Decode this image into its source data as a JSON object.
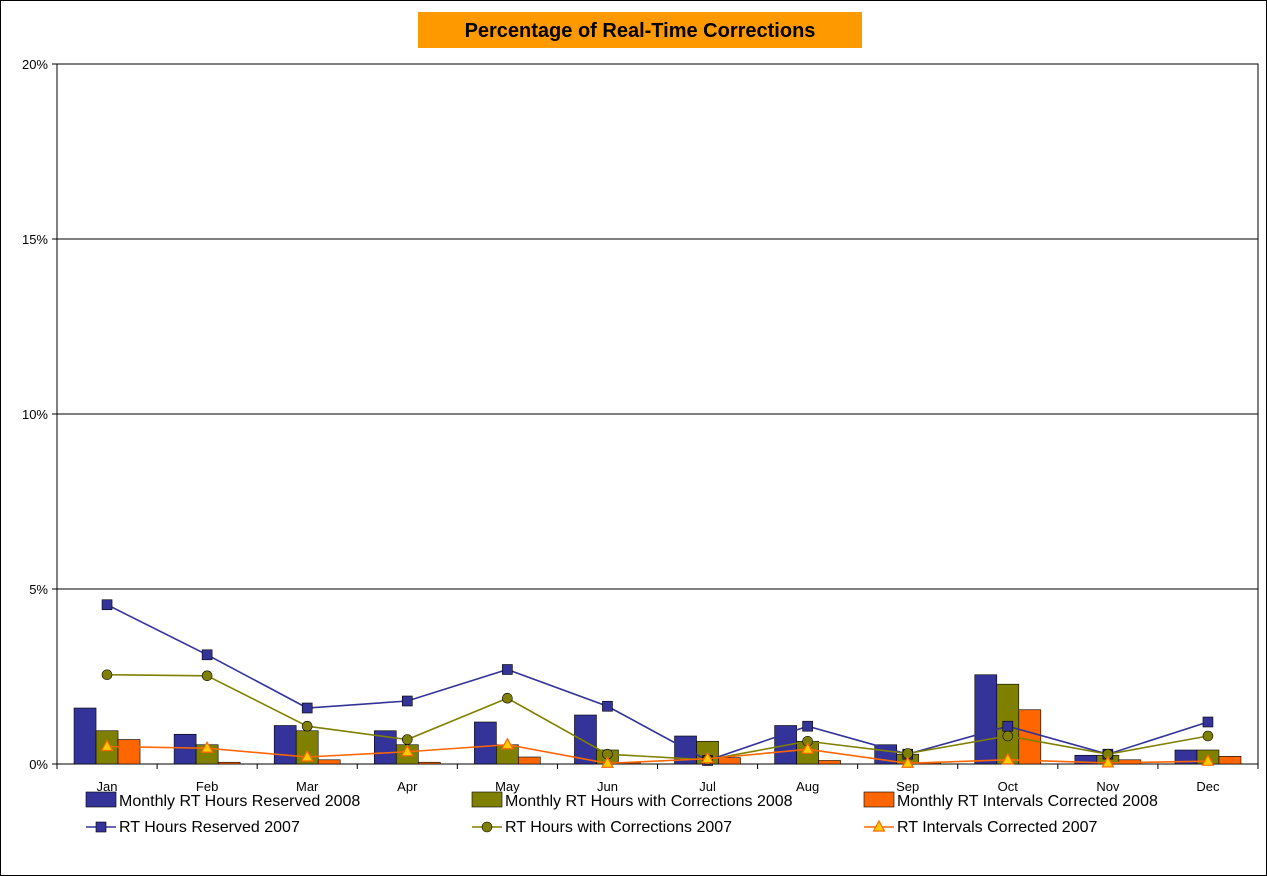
{
  "chart_data": {
    "type": "bar",
    "title": "Percentage of Real-Time Corrections",
    "xlabel": "",
    "ylabel": "",
    "ylim": [
      0,
      20
    ],
    "yticks": [
      0,
      5,
      10,
      15,
      20
    ],
    "ytick_labels": [
      "0%",
      "5%",
      "10%",
      "15%",
      "20%"
    ],
    "grid": true,
    "legend_position": "bottom",
    "categories": [
      "Jan",
      "Feb",
      "Mar",
      "Apr",
      "May",
      "Jun",
      "Jul",
      "Aug",
      "Sep",
      "Oct",
      "Nov",
      "Dec"
    ],
    "bar_series": [
      {
        "name": "Monthly RT Hours Reserved 2008",
        "color": "#333399",
        "values": [
          1.6,
          0.85,
          1.1,
          0.95,
          1.2,
          1.4,
          0.8,
          1.1,
          0.55,
          2.55,
          0.25,
          0.4
        ]
      },
      {
        "name": "Monthly RT Hours with Corrections 2008",
        "color": "#808000",
        "values": [
          0.95,
          0.55,
          0.95,
          0.55,
          0.55,
          0.4,
          0.65,
          0.65,
          0.28,
          2.28,
          0.25,
          0.4
        ]
      },
      {
        "name": "Monthly RT Intervals Corrected 2008",
        "color": "#FF6600",
        "values": [
          0.7,
          0.05,
          0.12,
          0.05,
          0.2,
          0.03,
          0.18,
          0.1,
          0.03,
          1.55,
          0.12,
          0.22
        ]
      }
    ],
    "line_series": [
      {
        "name": "RT Hours Reserved 2007",
        "color": "#333399",
        "marker": "square",
        "values": [
          4.55,
          3.12,
          1.6,
          1.8,
          2.7,
          1.65,
          0.1,
          1.08,
          0.28,
          1.08,
          0.28,
          1.2
        ]
      },
      {
        "name": "RT Hours with Corrections 2007",
        "color": "#808000",
        "marker": "circle",
        "values": [
          2.55,
          2.52,
          1.08,
          0.7,
          1.88,
          0.28,
          0.12,
          0.65,
          0.3,
          0.8,
          0.28,
          0.8
        ]
      },
      {
        "name": "RT Intervals Corrected 2007",
        "color": "#FF6600",
        "marker": "triangle",
        "values": [
          0.5,
          0.45,
          0.2,
          0.35,
          0.55,
          0.02,
          0.15,
          0.42,
          0.02,
          0.12,
          0.03,
          0.08
        ]
      }
    ],
    "title_background": "#FF9900"
  }
}
